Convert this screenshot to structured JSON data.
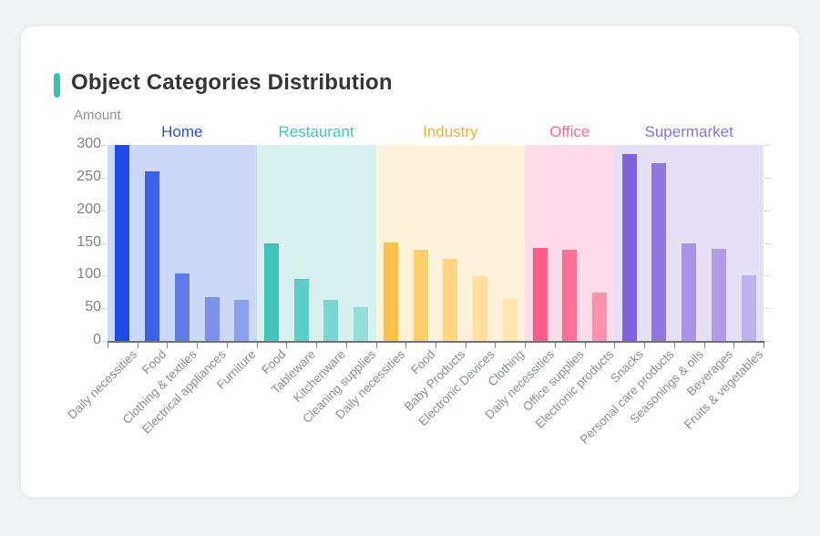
{
  "page": {
    "background_color": "#f1f3f5",
    "card_color": "#ffffff"
  },
  "header": {
    "accent_color": "#35c3b4",
    "title_color": "#33353a"
  },
  "axis_style": {
    "axis_line_color": "#6f7379",
    "y_label_color": "#7d828c",
    "x_label_color": "#8a8e9b"
  },
  "chart_data": {
    "type": "bar",
    "title": "Object Categories Distribution",
    "ylabel": "Amount",
    "xlabel": "",
    "ylim": [
      0,
      300
    ],
    "yticks": [
      0,
      50,
      100,
      150,
      200,
      250,
      300
    ],
    "grid": false,
    "legend_position": "none",
    "groups": [
      {
        "name": "Home",
        "label_color": "#2d51d6",
        "band_color": "#cdd7f6",
        "bar_colors": [
          "#1d4ce8",
          "#3b62e5",
          "#5f7ce9",
          "#7d92ec",
          "#8da0ee"
        ],
        "items": [
          {
            "label": "Daily necessities",
            "value": 300
          },
          {
            "label": "Food",
            "value": 260
          },
          {
            "label": "Clothing & textiles",
            "value": 103
          },
          {
            "label": "Electrical appliances",
            "value": 67
          },
          {
            "label": "Furniture",
            "value": 63
          }
        ]
      },
      {
        "name": "Restaurant",
        "label_color": "#3fc8bb",
        "band_color": "#d9f1ee",
        "bar_colors": [
          "#40c5b9",
          "#5bcec4",
          "#79d7cf",
          "#92dfd8"
        ],
        "items": [
          {
            "label": "Food",
            "value": 150
          },
          {
            "label": "Tableware",
            "value": 95
          },
          {
            "label": "Kitchenware",
            "value": 63
          },
          {
            "label": "Cleaning supplies",
            "value": 51
          }
        ]
      },
      {
        "name": "Industry",
        "label_color": "#e9b33c",
        "band_color": "#fdf3da",
        "bar_colors": [
          "#fdc247",
          "#fdcf6b",
          "#fdd781",
          "#fde09c",
          "#fde7b0"
        ],
        "items": [
          {
            "label": "Daily necessities",
            "value": 151
          },
          {
            "label": "Food",
            "value": 139
          },
          {
            "label": "Baby Products",
            "value": 126
          },
          {
            "label": "Electronic Devices",
            "value": 99
          },
          {
            "label": "Clothing",
            "value": 64
          }
        ]
      },
      {
        "name": "Office",
        "label_color": "#f96993",
        "band_color": "#fcdce9",
        "bar_colors": [
          "#f85e89",
          "#fa7298",
          "#fb93af"
        ],
        "items": [
          {
            "label": "Daily necessities",
            "value": 143
          },
          {
            "label": "Office supplies",
            "value": 139
          },
          {
            "label": "Electronic products",
            "value": 74
          }
        ]
      },
      {
        "name": "Supermarket",
        "label_color": "#8b72e1",
        "band_color": "#e5e0f6",
        "bar_colors": [
          "#7f63da",
          "#8f77de",
          "#a893e5",
          "#b09ce8",
          "#c0b0ed"
        ],
        "items": [
          {
            "label": "Snacks",
            "value": 286
          },
          {
            "label": "Personal care products",
            "value": 272
          },
          {
            "label": "Seasonings & oils",
            "value": 149
          },
          {
            "label": "Beverages",
            "value": 141
          },
          {
            "label": "Fruits & vegetables",
            "value": 100
          }
        ]
      }
    ]
  }
}
